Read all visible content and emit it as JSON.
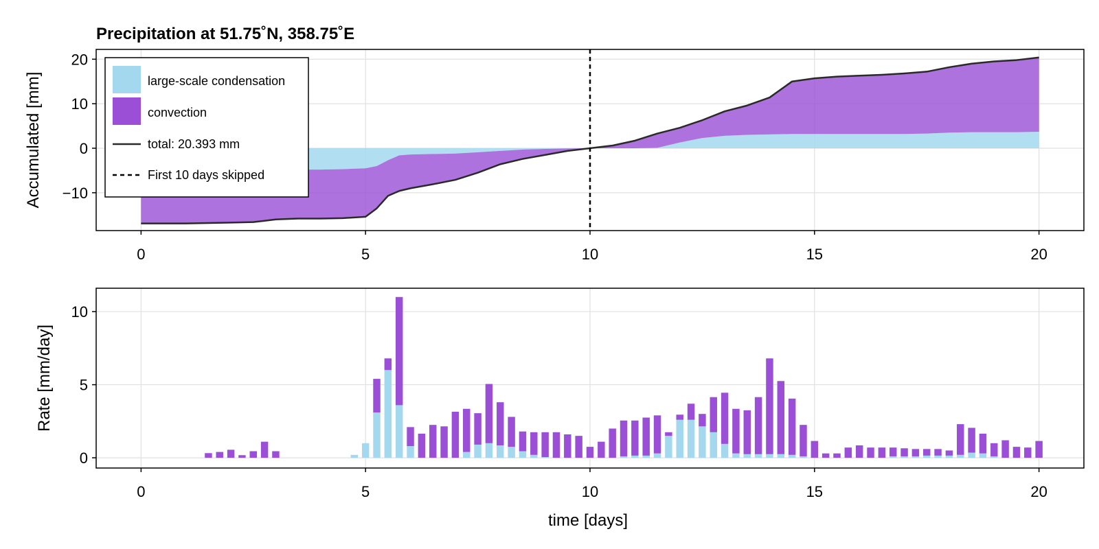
{
  "chart_data": [
    {
      "type": "area",
      "title": "Precipitation at 51.75˚N, 358.75˚E",
      "xlabel": "",
      "ylabel": "Accumulated [mm]",
      "xlim": [
        -1,
        21
      ],
      "ylim": [
        -18.5,
        22.2
      ],
      "xticks": [
        0,
        5,
        10,
        15,
        20
      ],
      "yticks": [
        -10,
        0,
        10,
        20
      ],
      "ytick_labels": [
        "−10",
        "0",
        "10",
        "20"
      ],
      "grid": true,
      "legend_position": "top-left",
      "colors": {
        "large_scale": "#a3d8ee",
        "convection": "#9a4fd6",
        "total": "#2a2a2a"
      },
      "x": [
        0,
        0.5,
        1,
        1.5,
        2,
        2.5,
        3,
        3.5,
        4,
        4.5,
        5,
        5.25,
        5.5,
        5.75,
        6,
        6.5,
        7,
        7.5,
        8,
        8.5,
        9,
        9.5,
        10,
        10.5,
        11,
        11.5,
        12,
        12.5,
        13,
        13.5,
        14,
        14.5,
        15,
        15.5,
        16,
        16.5,
        17,
        17.5,
        18,
        18.5,
        19,
        19.5,
        20
      ],
      "series": [
        {
          "name": "large-scale condensation",
          "values": [
            -4.8,
            -4.8,
            -4.8,
            -4.8,
            -4.8,
            -4.8,
            -4.8,
            -4.8,
            -4.8,
            -4.7,
            -4.5,
            -4.0,
            -2.7,
            -1.6,
            -1.4,
            -1.3,
            -1.2,
            -0.9,
            -0.6,
            -0.3,
            -0.15,
            -0.05,
            0,
            0,
            0,
            0.1,
            1.3,
            2.3,
            2.8,
            3.0,
            3.1,
            3.2,
            3.2,
            3.2,
            3.2,
            3.2,
            3.2,
            3.3,
            3.5,
            3.6,
            3.6,
            3.6,
            3.7
          ]
        },
        {
          "name": "convection",
          "values": [
            -12.1,
            -12.1,
            -12.1,
            -12.0,
            -11.9,
            -11.8,
            -11.2,
            -11.0,
            -11.0,
            -11.0,
            -10.9,
            -9.5,
            -8.0,
            -8.0,
            -7.6,
            -6.8,
            -5.9,
            -4.6,
            -3.0,
            -2.1,
            -1.35,
            -0.55,
            0,
            0.6,
            1.7,
            3.2,
            3.3,
            4.0,
            5.5,
            6.6,
            8.3,
            11.8,
            12.5,
            12.9,
            13.1,
            13.3,
            13.6,
            13.9,
            14.7,
            15.4,
            15.9,
            16.2,
            16.693
          ]
        },
        {
          "name": "total: 20.393 mm",
          "values": [
            -16.9,
            -16.9,
            -16.9,
            -16.8,
            -16.7,
            -16.6,
            -16.0,
            -15.8,
            -15.8,
            -15.7,
            -15.4,
            -13.5,
            -10.7,
            -9.6,
            -9.0,
            -8.1,
            -7.1,
            -5.5,
            -3.6,
            -2.4,
            -1.5,
            -0.6,
            0,
            0.6,
            1.7,
            3.3,
            4.6,
            6.3,
            8.3,
            9.6,
            11.4,
            15.0,
            15.7,
            16.1,
            16.3,
            16.5,
            16.8,
            17.2,
            18.2,
            19.0,
            19.5,
            19.8,
            20.393
          ]
        }
      ],
      "annotations": [
        {
          "type": "vline",
          "x": 10,
          "style": "dashed",
          "label": "First 10 days skipped"
        }
      ]
    },
    {
      "type": "bar",
      "stacked": true,
      "xlabel": "time [days]",
      "ylabel": "Rate [mm/day]",
      "xlim": [
        -1,
        21
      ],
      "ylim": [
        -0.7,
        11.6
      ],
      "xticks": [
        0,
        5,
        10,
        15,
        20
      ],
      "yticks": [
        0,
        5,
        10
      ],
      "grid": true,
      "bar_width_days": 0.2,
      "x": [
        1.5,
        1.75,
        2,
        2.25,
        2.5,
        2.75,
        3,
        4.75,
        5,
        5.25,
        5.5,
        5.75,
        6,
        6.25,
        6.5,
        6.75,
        7,
        7.25,
        7.5,
        7.75,
        8,
        8.25,
        8.5,
        8.75,
        9,
        9.25,
        9.5,
        9.75,
        10,
        10.25,
        10.5,
        10.75,
        11,
        11.25,
        11.5,
        11.75,
        12,
        12.25,
        12.5,
        12.75,
        13,
        13.25,
        13.5,
        13.75,
        14,
        14.25,
        14.5,
        14.75,
        15,
        15.25,
        15.5,
        15.75,
        16,
        16.25,
        16.5,
        16.75,
        17,
        17.25,
        17.5,
        17.75,
        18,
        18.25,
        18.5,
        18.75,
        19,
        19.25,
        19.5,
        19.75,
        20
      ],
      "series": [
        {
          "name": "large-scale condensation",
          "values": [
            0,
            0,
            0,
            0,
            0,
            0,
            0,
            0.2,
            1.0,
            3.1,
            6.0,
            3.6,
            0.8,
            0,
            0,
            0,
            0,
            0.4,
            0.9,
            1.0,
            0.85,
            0.75,
            0.45,
            0.2,
            0.05,
            0,
            0,
            0,
            0,
            0,
            0,
            0.1,
            0.15,
            0.15,
            0.3,
            1.5,
            2.6,
            2.6,
            2.15,
            1.75,
            0.95,
            0.3,
            0.25,
            0.25,
            0.25,
            0.25,
            0.2,
            0.1,
            0,
            0,
            0,
            0,
            0,
            0,
            0,
            0.1,
            0.1,
            0.1,
            0.15,
            0.15,
            0.15,
            0.2,
            0.35,
            0.3,
            0.1,
            0,
            0,
            0,
            0
          ]
        },
        {
          "name": "convection",
          "values": [
            0.32,
            0.4,
            0.55,
            0.18,
            0.45,
            1.1,
            0.45,
            0,
            0,
            2.3,
            0.8,
            7.4,
            1.3,
            1.65,
            2.25,
            2.15,
            3.15,
            2.95,
            2.15,
            4.05,
            2.95,
            2.05,
            1.35,
            1.55,
            1.7,
            1.75,
            1.6,
            1.5,
            0.75,
            1.1,
            2.0,
            2.45,
            2.4,
            2.6,
            2.6,
            0.25,
            0.35,
            1.1,
            0.85,
            2.4,
            3.5,
            3.05,
            3.0,
            3.9,
            6.55,
            5.0,
            3.85,
            2.15,
            1.15,
            0.3,
            0.3,
            0.7,
            0.85,
            0.7,
            0.7,
            0.6,
            0.55,
            0.5,
            0.45,
            0.45,
            0.35,
            2.1,
            1.7,
            1.35,
            0.9,
            1.2,
            0.75,
            0.7,
            1.15
          ]
        }
      ]
    }
  ]
}
